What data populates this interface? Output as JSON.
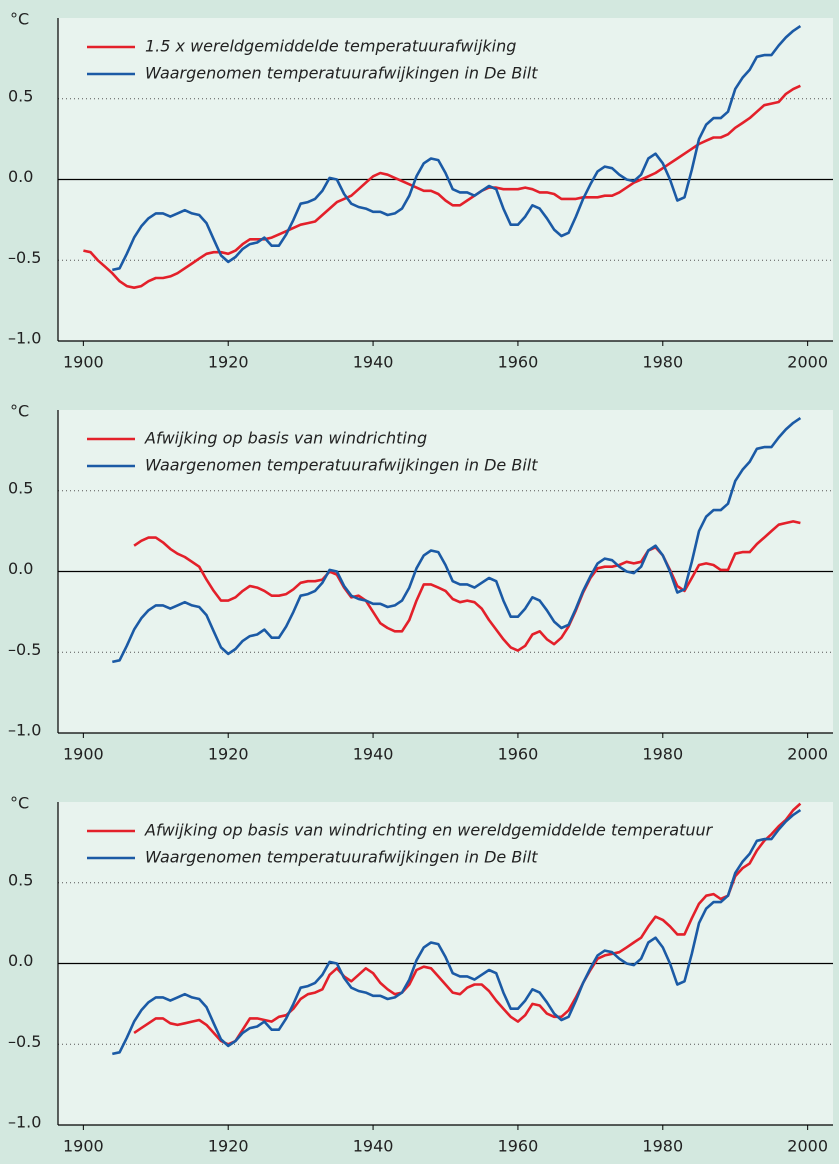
{
  "chart_data": [
    {
      "type": "line",
      "y_label": "°C",
      "legend": "upper left",
      "grid": true,
      "xlim": [
        1896.5,
        2003.5
      ],
      "ylim": [
        -1.0,
        1.0
      ],
      "xticks": [
        1900,
        1920,
        1940,
        1960,
        1980,
        2000
      ],
      "yticks": [
        {
          "value": -1.0,
          "label": "–1.0"
        },
        {
          "value": -0.5,
          "label": "–0.5"
        },
        {
          "value": 0.0,
          "label": "0.0"
        },
        {
          "value": 0.5,
          "label": "0.5"
        }
      ],
      "x": [
        1900,
        1901,
        1902,
        1903,
        1904,
        1905,
        1906,
        1907,
        1908,
        1909,
        1910,
        1911,
        1912,
        1913,
        1914,
        1915,
        1916,
        1917,
        1918,
        1919,
        1920,
        1921,
        1922,
        1923,
        1924,
        1925,
        1926,
        1927,
        1928,
        1929,
        1930,
        1931,
        1932,
        1933,
        1934,
        1935,
        1936,
        1937,
        1938,
        1939,
        1940,
        1941,
        1942,
        1943,
        1944,
        1945,
        1946,
        1947,
        1948,
        1949,
        1950,
        1951,
        1952,
        1953,
        1954,
        1955,
        1956,
        1957,
        1958,
        1959,
        1960,
        1961,
        1962,
        1963,
        1964,
        1965,
        1966,
        1967,
        1968,
        1969,
        1970,
        1971,
        1972,
        1973,
        1974,
        1975,
        1976,
        1977,
        1978,
        1979,
        1980,
        1981,
        1982,
        1983,
        1984,
        1985,
        1986,
        1987,
        1988,
        1989,
        1990,
        1991,
        1992,
        1993,
        1994,
        1995,
        1996,
        1997,
        1998,
        1999
      ],
      "series": [
        {
          "name": "1.5 x wereldgemiddelde temperatuurafwijking",
          "color": "#e3202a",
          "values": [
            -0.44,
            -0.45,
            -0.5,
            -0.54,
            -0.58,
            -0.63,
            -0.66,
            -0.67,
            -0.66,
            -0.63,
            -0.61,
            -0.61,
            -0.6,
            -0.58,
            -0.55,
            -0.52,
            -0.49,
            -0.46,
            -0.45,
            -0.45,
            -0.46,
            -0.44,
            -0.4,
            -0.37,
            -0.37,
            -0.37,
            -0.36,
            -0.34,
            -0.32,
            -0.3,
            -0.28,
            -0.27,
            -0.26,
            -0.22,
            -0.18,
            -0.14,
            -0.12,
            -0.1,
            -0.06,
            -0.02,
            0.02,
            0.04,
            0.03,
            0.01,
            -0.01,
            -0.03,
            -0.05,
            -0.07,
            -0.07,
            -0.09,
            -0.13,
            -0.16,
            -0.16,
            -0.13,
            -0.1,
            -0.07,
            -0.05,
            -0.05,
            -0.06,
            -0.06,
            -0.06,
            -0.05,
            -0.06,
            -0.08,
            -0.08,
            -0.09,
            -0.12,
            -0.12,
            -0.12,
            -0.11,
            -0.11,
            -0.11,
            -0.1,
            -0.1,
            -0.08,
            -0.05,
            -0.02,
            0.0,
            0.02,
            0.04,
            0.07,
            0.1,
            0.13,
            0.16,
            0.19,
            0.22,
            0.24,
            0.26,
            0.26,
            0.28,
            0.32,
            0.35,
            0.38,
            0.42,
            0.46,
            0.47,
            0.48,
            0.53,
            0.56,
            0.58
          ]
        },
        {
          "name": "Waargenomen temperatuurafwijkingen in De Bilt",
          "color": "#1b5aa5",
          "values": [
            null,
            null,
            null,
            null,
            -0.56,
            -0.55,
            -0.46,
            -0.36,
            -0.29,
            -0.24,
            -0.21,
            -0.21,
            -0.23,
            -0.21,
            -0.19,
            -0.21,
            -0.22,
            -0.27,
            -0.37,
            -0.47,
            -0.51,
            -0.48,
            -0.43,
            -0.4,
            -0.39,
            -0.36,
            -0.41,
            -0.41,
            -0.34,
            -0.25,
            -0.15,
            -0.14,
            -0.12,
            -0.07,
            0.01,
            0.0,
            -0.09,
            -0.15,
            -0.17,
            -0.18,
            -0.2,
            -0.2,
            -0.22,
            -0.21,
            -0.18,
            -0.1,
            0.02,
            0.1,
            0.13,
            0.12,
            0.04,
            -0.06,
            -0.08,
            -0.08,
            -0.1,
            -0.07,
            -0.04,
            -0.06,
            -0.18,
            -0.28,
            -0.28,
            -0.23,
            -0.16,
            -0.18,
            -0.24,
            -0.31,
            -0.35,
            -0.33,
            -0.23,
            -0.12,
            -0.03,
            0.05,
            0.08,
            0.07,
            0.03,
            0.0,
            -0.01,
            0.03,
            0.13,
            0.16,
            0.1,
            0.0,
            -0.13,
            -0.11,
            0.06,
            0.25,
            0.34,
            0.38,
            0.38,
            0.42,
            0.56,
            0.63,
            0.68,
            0.76,
            0.77,
            0.77,
            0.83,
            0.88,
            0.92,
            0.95
          ]
        }
      ]
    },
    {
      "type": "line",
      "y_label": "°C",
      "legend": "upper left",
      "grid": true,
      "xlim": [
        1896.5,
        2003.5
      ],
      "ylim": [
        -1.0,
        1.0
      ],
      "xticks": [
        1900,
        1920,
        1940,
        1960,
        1980,
        2000
      ],
      "yticks": [
        {
          "value": -1.0,
          "label": "–1.0"
        },
        {
          "value": -0.5,
          "label": "–0.5"
        },
        {
          "value": 0.0,
          "label": "0.0"
        },
        {
          "value": 0.5,
          "label": "0.5"
        }
      ],
      "x": [
        1900,
        1901,
        1902,
        1903,
        1904,
        1905,
        1906,
        1907,
        1908,
        1909,
        1910,
        1911,
        1912,
        1913,
        1914,
        1915,
        1916,
        1917,
        1918,
        1919,
        1920,
        1921,
        1922,
        1923,
        1924,
        1925,
        1926,
        1927,
        1928,
        1929,
        1930,
        1931,
        1932,
        1933,
        1934,
        1935,
        1936,
        1937,
        1938,
        1939,
        1940,
        1941,
        1942,
        1943,
        1944,
        1945,
        1946,
        1947,
        1948,
        1949,
        1950,
        1951,
        1952,
        1953,
        1954,
        1955,
        1956,
        1957,
        1958,
        1959,
        1960,
        1961,
        1962,
        1963,
        1964,
        1965,
        1966,
        1967,
        1968,
        1969,
        1970,
        1971,
        1972,
        1973,
        1974,
        1975,
        1976,
        1977,
        1978,
        1979,
        1980,
        1981,
        1982,
        1983,
        1984,
        1985,
        1986,
        1987,
        1988,
        1989,
        1990,
        1991,
        1992,
        1993,
        1994,
        1995,
        1996,
        1997,
        1998,
        1999
      ],
      "series": [
        {
          "name": "Afwijking op basis van windrichting",
          "color": "#e3202a",
          "values": [
            null,
            null,
            null,
            null,
            null,
            null,
            null,
            0.16,
            0.19,
            0.21,
            0.21,
            0.18,
            0.14,
            0.11,
            0.09,
            0.06,
            0.03,
            -0.05,
            -0.12,
            -0.18,
            -0.18,
            -0.16,
            -0.12,
            -0.09,
            -0.1,
            -0.12,
            -0.15,
            -0.15,
            -0.14,
            -0.11,
            -0.07,
            -0.06,
            -0.06,
            -0.05,
            0.0,
            -0.02,
            -0.1,
            -0.16,
            -0.15,
            -0.18,
            -0.25,
            -0.32,
            -0.35,
            -0.37,
            -0.37,
            -0.3,
            -0.18,
            -0.08,
            -0.08,
            -0.1,
            -0.12,
            -0.17,
            -0.19,
            -0.18,
            -0.19,
            -0.23,
            -0.3,
            -0.36,
            -0.42,
            -0.47,
            -0.49,
            -0.46,
            -0.39,
            -0.37,
            -0.42,
            -0.45,
            -0.41,
            -0.34,
            -0.24,
            -0.13,
            -0.04,
            0.02,
            0.03,
            0.03,
            0.04,
            0.06,
            0.05,
            0.06,
            0.13,
            0.15,
            0.1,
            0.01,
            -0.09,
            -0.12,
            -0.04,
            0.04,
            0.05,
            0.04,
            0.01,
            0.01,
            0.11,
            0.12,
            0.12,
            0.17,
            0.21,
            0.25,
            0.29,
            0.3,
            0.31,
            0.3
          ]
        },
        {
          "name": "Waargenomen temperatuurafwijkingen in De Bilt",
          "color": "#1b5aa5",
          "values": [
            null,
            null,
            null,
            null,
            -0.56,
            -0.55,
            -0.46,
            -0.36,
            -0.29,
            -0.24,
            -0.21,
            -0.21,
            -0.23,
            -0.21,
            -0.19,
            -0.21,
            -0.22,
            -0.27,
            -0.37,
            -0.47,
            -0.51,
            -0.48,
            -0.43,
            -0.4,
            -0.39,
            -0.36,
            -0.41,
            -0.41,
            -0.34,
            -0.25,
            -0.15,
            -0.14,
            -0.12,
            -0.07,
            0.01,
            0.0,
            -0.09,
            -0.15,
            -0.17,
            -0.18,
            -0.2,
            -0.2,
            -0.22,
            -0.21,
            -0.18,
            -0.1,
            0.02,
            0.1,
            0.13,
            0.12,
            0.04,
            -0.06,
            -0.08,
            -0.08,
            -0.1,
            -0.07,
            -0.04,
            -0.06,
            -0.18,
            -0.28,
            -0.28,
            -0.23,
            -0.16,
            -0.18,
            -0.24,
            -0.31,
            -0.35,
            -0.33,
            -0.23,
            -0.12,
            -0.03,
            0.05,
            0.08,
            0.07,
            0.03,
            0.0,
            -0.01,
            0.03,
            0.13,
            0.16,
            0.1,
            0.0,
            -0.13,
            -0.11,
            0.06,
            0.25,
            0.34,
            0.38,
            0.38,
            0.42,
            0.56,
            0.63,
            0.68,
            0.76,
            0.77,
            0.77,
            0.83,
            0.88,
            0.92,
            0.95
          ]
        }
      ]
    },
    {
      "type": "line",
      "y_label": "°C",
      "legend": "upper left",
      "grid": true,
      "xlim": [
        1896.5,
        2003.5
      ],
      "ylim": [
        -1.0,
        1.0
      ],
      "xticks": [
        1900,
        1920,
        1940,
        1960,
        1980,
        2000
      ],
      "yticks": [
        {
          "value": -1.0,
          "label": "–1.0"
        },
        {
          "value": -0.5,
          "label": "–0.5"
        },
        {
          "value": 0.0,
          "label": "0.0"
        },
        {
          "value": 0.5,
          "label": "0.5"
        }
      ],
      "x": [
        1900,
        1901,
        1902,
        1903,
        1904,
        1905,
        1906,
        1907,
        1908,
        1909,
        1910,
        1911,
        1912,
        1913,
        1914,
        1915,
        1916,
        1917,
        1918,
        1919,
        1920,
        1921,
        1922,
        1923,
        1924,
        1925,
        1926,
        1927,
        1928,
        1929,
        1930,
        1931,
        1932,
        1933,
        1934,
        1935,
        1936,
        1937,
        1938,
        1939,
        1940,
        1941,
        1942,
        1943,
        1944,
        1945,
        1946,
        1947,
        1948,
        1949,
        1950,
        1951,
        1952,
        1953,
        1954,
        1955,
        1956,
        1957,
        1958,
        1959,
        1960,
        1961,
        1962,
        1963,
        1964,
        1965,
        1966,
        1967,
        1968,
        1969,
        1970,
        1971,
        1972,
        1973,
        1974,
        1975,
        1976,
        1977,
        1978,
        1979,
        1980,
        1981,
        1982,
        1983,
        1984,
        1985,
        1986,
        1987,
        1988,
        1989,
        1990,
        1991,
        1992,
        1993,
        1994,
        1995,
        1996,
        1997,
        1998,
        1999
      ],
      "series": [
        {
          "name": "Afwijking op basis van windrichting en wereldgemiddelde temperatuur",
          "color": "#e3202a",
          "values": [
            null,
            null,
            null,
            null,
            null,
            null,
            null,
            -0.43,
            -0.4,
            -0.37,
            -0.34,
            -0.34,
            -0.37,
            -0.38,
            -0.37,
            -0.36,
            -0.35,
            -0.38,
            -0.43,
            -0.48,
            -0.5,
            -0.48,
            -0.41,
            -0.34,
            -0.34,
            -0.35,
            -0.36,
            -0.33,
            -0.32,
            -0.28,
            -0.22,
            -0.19,
            -0.18,
            -0.16,
            -0.07,
            -0.03,
            -0.08,
            -0.11,
            -0.07,
            -0.03,
            -0.06,
            -0.12,
            -0.16,
            -0.19,
            -0.18,
            -0.13,
            -0.04,
            -0.02,
            -0.03,
            -0.08,
            -0.13,
            -0.18,
            -0.19,
            -0.15,
            -0.13,
            -0.13,
            -0.17,
            -0.23,
            -0.28,
            -0.33,
            -0.36,
            -0.32,
            -0.25,
            -0.26,
            -0.31,
            -0.33,
            -0.33,
            -0.29,
            -0.21,
            -0.12,
            -0.04,
            0.03,
            0.05,
            0.06,
            0.07,
            0.1,
            0.13,
            0.16,
            0.23,
            0.29,
            0.27,
            0.23,
            0.18,
            0.18,
            0.28,
            0.37,
            0.42,
            0.43,
            0.4,
            0.42,
            0.54,
            0.59,
            0.62,
            0.7,
            0.76,
            0.8,
            0.85,
            0.89,
            0.95,
            0.99
          ]
        },
        {
          "name": "Waargenomen temperatuurafwijkingen in De Bilt",
          "color": "#1b5aa5",
          "values": [
            null,
            null,
            null,
            null,
            -0.56,
            -0.55,
            -0.46,
            -0.36,
            -0.29,
            -0.24,
            -0.21,
            -0.21,
            -0.23,
            -0.21,
            -0.19,
            -0.21,
            -0.22,
            -0.27,
            -0.37,
            -0.47,
            -0.51,
            -0.48,
            -0.43,
            -0.4,
            -0.39,
            -0.36,
            -0.41,
            -0.41,
            -0.34,
            -0.25,
            -0.15,
            -0.14,
            -0.12,
            -0.07,
            0.01,
            0.0,
            -0.09,
            -0.15,
            -0.17,
            -0.18,
            -0.2,
            -0.2,
            -0.22,
            -0.21,
            -0.18,
            -0.1,
            0.02,
            0.1,
            0.13,
            0.12,
            0.04,
            -0.06,
            -0.08,
            -0.08,
            -0.1,
            -0.07,
            -0.04,
            -0.06,
            -0.18,
            -0.28,
            -0.28,
            -0.23,
            -0.16,
            -0.18,
            -0.24,
            -0.31,
            -0.35,
            -0.33,
            -0.23,
            -0.12,
            -0.03,
            0.05,
            0.08,
            0.07,
            0.03,
            0.0,
            -0.01,
            0.03,
            0.13,
            0.16,
            0.1,
            0.0,
            -0.13,
            -0.11,
            0.06,
            0.25,
            0.34,
            0.38,
            0.38,
            0.42,
            0.56,
            0.63,
            0.68,
            0.76,
            0.77,
            0.77,
            0.83,
            0.88,
            0.92,
            0.95
          ]
        }
      ]
    }
  ]
}
